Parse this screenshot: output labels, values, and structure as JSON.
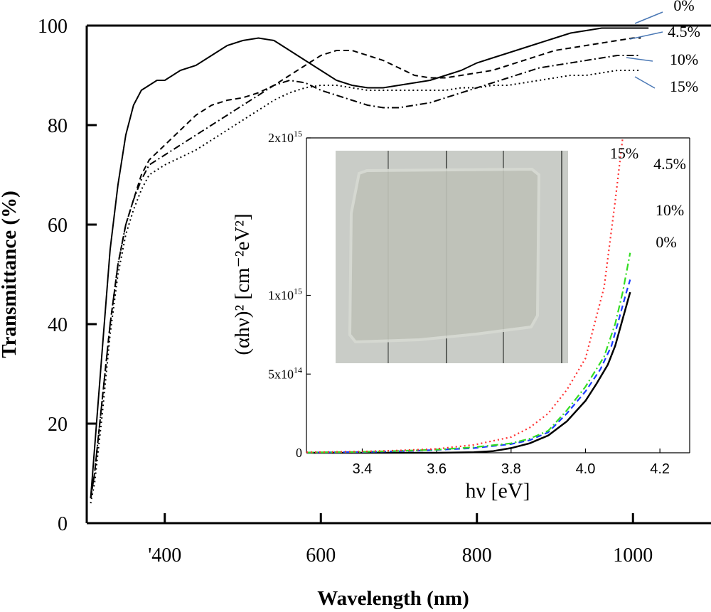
{
  "chart_data": [
    {
      "type": "line",
      "title": "",
      "xlabel": "Wavelength (nm)",
      "ylabel": "Transmittance (%)",
      "xlim": [
        300,
        1100
      ],
      "ylim": [
        0,
        100
      ],
      "x_ticks": [
        400,
        600,
        800,
        1000
      ],
      "x_tick_labels": [
        "'400",
        "600",
        "800",
        "1000"
      ],
      "y_ticks": [
        0,
        20,
        40,
        60,
        80,
        100
      ],
      "y_tick_labels": [
        "0",
        "20",
        "40",
        "60",
        "80",
        "100"
      ],
      "series": [
        {
          "name": "0%",
          "style": "solid",
          "x": [
            305,
            310,
            320,
            330,
            340,
            350,
            360,
            370,
            380,
            390,
            400,
            420,
            440,
            460,
            480,
            500,
            520,
            540,
            560,
            580,
            600,
            620,
            640,
            660,
            680,
            700,
            720,
            740,
            760,
            780,
            800,
            820,
            840,
            860,
            880,
            900,
            920,
            940,
            960,
            980,
            1000,
            1010,
            1020
          ],
          "y": [
            5,
            15,
            35,
            55,
            68,
            78,
            84,
            87,
            88,
            89,
            89,
            91,
            92,
            94,
            96,
            97,
            97.5,
            97,
            95,
            93,
            91,
            89,
            88,
            87.5,
            87.5,
            88,
            88.5,
            89,
            90,
            91,
            92.5,
            93.5,
            94.5,
            95.5,
            96.5,
            97.5,
            98.5,
            99,
            99.5,
            99.5,
            99.5,
            99.5,
            99.5
          ]
        },
        {
          "name": "4.5%",
          "style": "dashed",
          "x": [
            305,
            310,
            320,
            330,
            340,
            350,
            360,
            370,
            380,
            400,
            420,
            440,
            460,
            480,
            500,
            520,
            540,
            560,
            580,
            600,
            620,
            640,
            660,
            680,
            700,
            720,
            740,
            760,
            780,
            800,
            820,
            840,
            860,
            880,
            900,
            920,
            940,
            960,
            980,
            1000,
            1010
          ],
          "y": [
            5,
            10,
            25,
            40,
            52,
            60,
            65,
            70,
            73,
            76,
            79,
            82,
            84,
            85,
            85.5,
            86.5,
            88,
            90,
            92,
            94,
            95,
            95,
            94,
            93,
            91.5,
            90,
            89.5,
            89.5,
            90,
            90.5,
            91,
            92,
            93,
            94,
            95,
            95.5,
            96,
            96.5,
            97,
            97.5,
            97.5
          ]
        },
        {
          "name": "10%",
          "style": "dash-dot",
          "x": [
            305,
            310,
            320,
            330,
            340,
            350,
            360,
            370,
            380,
            400,
            420,
            440,
            460,
            480,
            500,
            520,
            540,
            560,
            580,
            600,
            620,
            640,
            660,
            680,
            700,
            720,
            740,
            760,
            780,
            800,
            820,
            840,
            860,
            880,
            900,
            920,
            940,
            960,
            980,
            1000,
            1010
          ],
          "y": [
            5,
            10,
            25,
            40,
            52,
            60,
            65,
            69,
            72,
            74,
            76,
            78,
            80,
            82,
            84,
            86,
            88,
            89,
            88.5,
            87,
            86,
            85,
            84,
            83.5,
            83.5,
            84,
            84.5,
            85.5,
            86.5,
            87.5,
            88.5,
            89.5,
            90.5,
            91.5,
            92,
            92.5,
            93,
            93.5,
            94,
            94,
            94
          ]
        },
        {
          "name": "15%",
          "style": "dotted",
          "x": [
            305,
            310,
            320,
            330,
            340,
            350,
            360,
            370,
            380,
            400,
            420,
            440,
            460,
            480,
            500,
            520,
            540,
            560,
            580,
            600,
            620,
            640,
            660,
            680,
            700,
            720,
            740,
            760,
            780,
            800,
            820,
            840,
            860,
            880,
            900,
            920,
            940,
            960,
            980,
            1000,
            1010
          ],
          "y": [
            4,
            8,
            22,
            38,
            50,
            58,
            63,
            67,
            70,
            72,
            73.5,
            75,
            77,
            79,
            81,
            83,
            85,
            86.5,
            87.5,
            88,
            88,
            87.5,
            87,
            87,
            87,
            87,
            87,
            87,
            87.5,
            87.5,
            88,
            88,
            88.5,
            89,
            89.5,
            90,
            90,
            90.5,
            91,
            91,
            91
          ]
        }
      ],
      "series_labels": [
        "0%",
        "4.5%",
        "10%",
        "15%"
      ]
    },
    {
      "type": "line",
      "title": "",
      "xlabel": "hν [eV]",
      "ylabel": "(αhν)² [cm⁻²eV²]",
      "xlim": [
        3.25,
        4.28
      ],
      "ylim": [
        0,
        2000000000000000.0
      ],
      "x_ticks": [
        3.4,
        3.6,
        3.8,
        4.0,
        4.2
      ],
      "x_tick_labels": [
        "3.4",
        "3.6",
        "3.8",
        "4.0",
        "4.2"
      ],
      "y_ticks": [
        0,
        500000000000000.0,
        1000000000000000.0,
        2000000000000000.0
      ],
      "y_tick_labels": [
        "0",
        "5x10",
        "1x10",
        "2x10"
      ],
      "y_tick_exponents": [
        "",
        "14",
        "15",
        "15"
      ],
      "series": [
        {
          "name": "0%",
          "color": "#000000",
          "style": "solid",
          "x": [
            3.25,
            3.6,
            3.7,
            3.75,
            3.8,
            3.85,
            3.9,
            3.95,
            4.0,
            4.03,
            4.06,
            4.08,
            4.1,
            4.12
          ],
          "y": [
            0,
            0,
            3000000000000.0,
            10000000000000.0,
            30000000000000.0,
            60000000000000.0,
            110000000000000.0,
            200000000000000.0,
            330000000000000.0,
            440000000000000.0,
            560000000000000.0,
            680000000000000.0,
            850000000000000.0,
            1020000000000000.0
          ]
        },
        {
          "name": "10%",
          "color": "#1a3cff",
          "style": "dashed",
          "x": [
            3.25,
            3.4,
            3.5,
            3.6,
            3.7,
            3.8,
            3.85,
            3.9,
            3.95,
            4.0,
            4.04,
            4.07,
            4.09,
            4.11,
            4.12
          ],
          "y": [
            2000000000000.0,
            5000000000000.0,
            10000000000000.0,
            18000000000000.0,
            30000000000000.0,
            55000000000000.0,
            80000000000000.0,
            130000000000000.0,
            250000000000000.0,
            390000000000000.0,
            530000000000000.0,
            680000000000000.0,
            850000000000000.0,
            1020000000000000.0,
            1100000000000000.0
          ]
        },
        {
          "name": "4.5%",
          "color": "#33dd22",
          "style": "dash-dot",
          "x": [
            3.25,
            3.4,
            3.5,
            3.6,
            3.7,
            3.8,
            3.85,
            3.9,
            3.95,
            4.0,
            4.05,
            4.08,
            4.1,
            4.12
          ],
          "y": [
            2000000000000.0,
            6000000000000.0,
            12000000000000.0,
            20000000000000.0,
            35000000000000.0,
            60000000000000.0,
            90000000000000.0,
            140000000000000.0,
            270000000000000.0,
            420000000000000.0,
            610000000000000.0,
            820000000000000.0,
            1020000000000000.0,
            1270000000000000.0
          ]
        },
        {
          "name": "15%",
          "color": "#ff3030",
          "style": "dotted",
          "x": [
            3.25,
            3.4,
            3.5,
            3.6,
            3.7,
            3.8,
            3.85,
            3.9,
            3.95,
            4.0,
            4.05,
            4.08,
            4.1
          ],
          "y": [
            3000000000000.0,
            8000000000000.0,
            15000000000000.0,
            25000000000000.0,
            50000000000000.0,
            100000000000000.0,
            160000000000000.0,
            250000000000000.0,
            400000000000000.0,
            600000000000000.0,
            1050000000000000.0,
            1600000000000000.0,
            2000000000000000.0
          ]
        }
      ],
      "series_labels": [
        "15%",
        "4.5%",
        "10%",
        "0%"
      ]
    }
  ]
}
